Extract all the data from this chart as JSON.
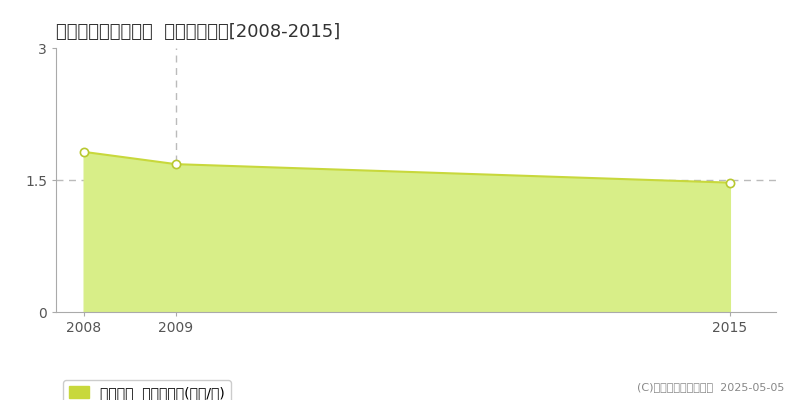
{
  "title": "苫前郡羽幌町北五条  土地価格推移[2008-2015]",
  "years": [
    2008,
    2009,
    2015
  ],
  "values": [
    1.82,
    1.68,
    1.47
  ],
  "line_color": "#c8d83c",
  "fill_color": "#d8ee88",
  "marker_facecolor": "#ffffff",
  "marker_edgecolor": "#b8c830",
  "ylim": [
    0,
    3
  ],
  "yticks": [
    0,
    1.5,
    3
  ],
  "xlim": [
    2007.7,
    2015.5
  ],
  "xticks": [
    2008,
    2009,
    2015
  ],
  "vline_color": "#bbbbbb",
  "hline_color": "#bbbbbb",
  "bg_color": "#ffffff",
  "legend_label": "土地価格  平均坪単価(万円/坪)",
  "copyright": "(C)土地価格ドットコム  2025-05-05",
  "vline_x": 2009,
  "hline_y": 1.5,
  "title_fontsize": 13,
  "tick_fontsize": 10,
  "legend_fontsize": 10,
  "copyright_fontsize": 8
}
